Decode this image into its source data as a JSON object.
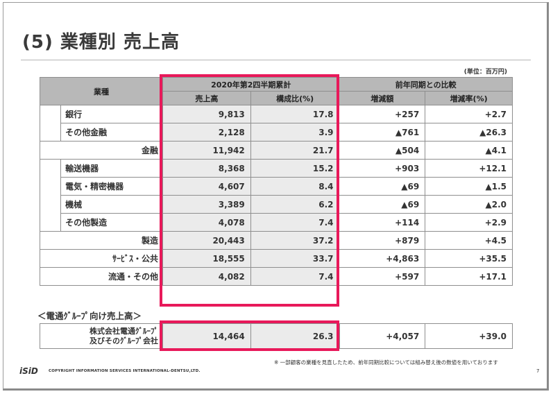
{
  "title": "(5) 業種別 売上高",
  "unit": "(単位：百万円)",
  "headers": {
    "industry": "業種",
    "period": "2020年第2四半期累計",
    "comparison": "前年同期との比較",
    "sales": "売上高",
    "ratio": "構成比(%)",
    "change": "増減額",
    "change_rate": "増減率(%)"
  },
  "rows": [
    {
      "label": "銀行",
      "sales": "9,813",
      "ratio": "17.8",
      "change": "+257",
      "rate": "+2.7"
    },
    {
      "label": "その他金融",
      "sales": "2,128",
      "ratio": "3.9",
      "change": "▲761",
      "rate": "▲26.3"
    },
    {
      "label": "金融",
      "sales": "11,942",
      "ratio": "21.7",
      "change": "▲504",
      "rate": "▲4.1"
    },
    {
      "label": "輸送機器",
      "sales": "8,368",
      "ratio": "15.2",
      "change": "+903",
      "rate": "+12.1"
    },
    {
      "label": "電気・精密機器",
      "sales": "4,607",
      "ratio": "8.4",
      "change": "▲69",
      "rate": "▲1.5"
    },
    {
      "label": "機械",
      "sales": "3,389",
      "ratio": "6.2",
      "change": "▲69",
      "rate": "▲2.0"
    },
    {
      "label": "その他製造",
      "sales": "4,078",
      "ratio": "7.4",
      "change": "+114",
      "rate": "+2.9"
    },
    {
      "label": "製造",
      "sales": "20,443",
      "ratio": "37.2",
      "change": "+879",
      "rate": "+4.5"
    },
    {
      "label": "ｻｰﾋﾞｽ・公共",
      "sales": "18,555",
      "ratio": "33.7",
      "change": "+4,863",
      "rate": "+35.5"
    },
    {
      "label": "流通・その他",
      "sales": "4,082",
      "ratio": "7.4",
      "change": "+597",
      "rate": "+17.1"
    }
  ],
  "group_section": "＜電通ｸﾞﾙｰﾌﾟ向け売上高＞",
  "group_row": {
    "label_line1": "株式会社電通ｸﾞﾙｰﾌﾟ",
    "label_line2": "及びそのｸﾞﾙｰﾌﾟ会社",
    "sales": "14,464",
    "ratio": "26.3",
    "change": "+4,057",
    "rate": "+39.0"
  },
  "note": "※ 一部顧客の業種を見直したため、前年同期比較については組み替え後の数値を用いております",
  "logo": "iSiD",
  "copyright": "COPYRIGHT INFORMATION SERVICES INTERNATIONAL-DENTSU,LTD.",
  "page_number": "7",
  "colors": {
    "highlight": "#e8195a",
    "header_bg": "#b8b8b8",
    "cell_bg": "#ebebeb"
  }
}
